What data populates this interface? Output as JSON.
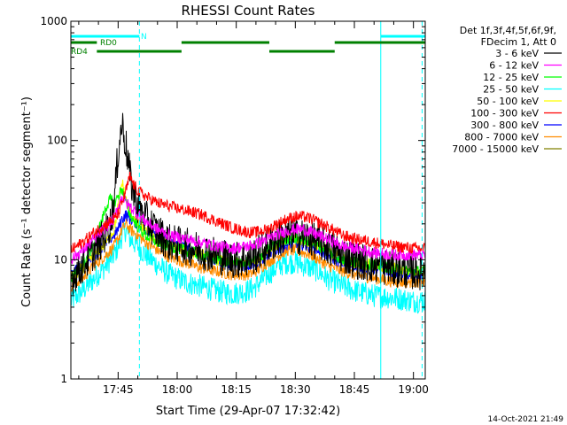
{
  "chart_data": {
    "type": "line",
    "title": "RHESSI Count Rates",
    "xlabel": "Start Time (29-Apr-07 17:32:42)",
    "ylabel": "Count Rate (s⁻¹ detector segment⁻¹)",
    "y_scale": "log",
    "ylim": [
      1,
      1000
    ],
    "xlim_minutes_after_1730": [
      3,
      93
    ],
    "x_ticks": [
      {
        "minute": 15,
        "label": "17:45"
      },
      {
        "minute": 30,
        "label": "18:00"
      },
      {
        "minute": 45,
        "label": "18:15"
      },
      {
        "minute": 60,
        "label": "18:30"
      },
      {
        "minute": 75,
        "label": "18:45"
      },
      {
        "minute": 90,
        "label": "19:00"
      }
    ],
    "y_ticks": [
      {
        "value": 1,
        "label": "1"
      },
      {
        "value": 10,
        "label": "10"
      },
      {
        "value": 100,
        "label": "100"
      },
      {
        "value": 1000,
        "label": "1000"
      }
    ],
    "legend_header": [
      "Det 1f,3f,4f,5f,6f,9f,",
      "FDecim 1, Att 0"
    ],
    "legend_position": "right",
    "series": [
      {
        "name": "3 - 6 keV",
        "color": "#000000"
      },
      {
        "name": "6 - 12 keV",
        "color": "#ff00ff"
      },
      {
        "name": "12 - 25 keV",
        "color": "#00ff00"
      },
      {
        "name": "25 - 50 keV",
        "color": "#00ffff"
      },
      {
        "name": "50 - 100 keV",
        "color": "#ffff00"
      },
      {
        "name": "100 - 300 keV",
        "color": "#ff0000"
      },
      {
        "name": "300 - 800 keV",
        "color": "#0000ff"
      },
      {
        "name": "800 - 7000 keV",
        "color": "#ff8c00"
      },
      {
        "name": "7000 - 15000 keV",
        "color": "#808000"
      }
    ],
    "plotted_profiles": [
      {
        "series": "100 - 300 keV",
        "color": "#ff0000",
        "points": [
          [
            3,
            12
          ],
          [
            6,
            14
          ],
          [
            9,
            17
          ],
          [
            12,
            20
          ],
          [
            14,
            22
          ],
          [
            15,
            24
          ],
          [
            16,
            30
          ],
          [
            17,
            38
          ],
          [
            18,
            50
          ],
          [
            19,
            42
          ],
          [
            20,
            38
          ],
          [
            22,
            34
          ],
          [
            25,
            30
          ],
          [
            28,
            28
          ],
          [
            32,
            26
          ],
          [
            36,
            24
          ],
          [
            40,
            21
          ],
          [
            44,
            18.5
          ],
          [
            48,
            17
          ],
          [
            50,
            17
          ],
          [
            53,
            18
          ],
          [
            56,
            20.5
          ],
          [
            58,
            22
          ],
          [
            60,
            23
          ],
          [
            62,
            23
          ],
          [
            64,
            22
          ],
          [
            66,
            20.5
          ],
          [
            68,
            19
          ],
          [
            70,
            17.5
          ],
          [
            72,
            16
          ],
          [
            75,
            15
          ],
          [
            80,
            14
          ],
          [
            85,
            13
          ],
          [
            90,
            12.5
          ],
          [
            93,
            12.5
          ]
        ]
      },
      {
        "series": "6 - 12 keV",
        "color": "#ff00ff",
        "points": [
          [
            3,
            10
          ],
          [
            6,
            12
          ],
          [
            9,
            15
          ],
          [
            12,
            19
          ],
          [
            14,
            22
          ],
          [
            15,
            28
          ],
          [
            16,
            34
          ],
          [
            17,
            30
          ],
          [
            18,
            28
          ],
          [
            20,
            24
          ],
          [
            22,
            21
          ],
          [
            25,
            18
          ],
          [
            28,
            16
          ],
          [
            32,
            15
          ],
          [
            36,
            14
          ],
          [
            40,
            13
          ],
          [
            44,
            12.5
          ],
          [
            48,
            13
          ],
          [
            50,
            13.5
          ],
          [
            53,
            15
          ],
          [
            56,
            16.5
          ],
          [
            58,
            17.5
          ],
          [
            60,
            18
          ],
          [
            62,
            18
          ],
          [
            64,
            17
          ],
          [
            66,
            16
          ],
          [
            68,
            15
          ],
          [
            70,
            14
          ],
          [
            72,
            13
          ],
          [
            75,
            12.5
          ],
          [
            80,
            11.5
          ],
          [
            85,
            11
          ],
          [
            90,
            11
          ],
          [
            93,
            11
          ]
        ]
      },
      {
        "series": "3 - 6 keV",
        "color": "#000000",
        "points": [
          [
            3,
            7
          ],
          [
            6,
            9
          ],
          [
            9,
            12
          ],
          [
            11,
            15
          ],
          [
            13,
            20
          ],
          [
            14,
            30
          ],
          [
            15,
            80
          ],
          [
            16,
            140
          ],
          [
            17,
            90
          ],
          [
            18,
            50
          ],
          [
            19,
            35
          ],
          [
            20,
            28
          ],
          [
            22,
            22
          ],
          [
            25,
            17
          ],
          [
            28,
            14
          ],
          [
            32,
            13
          ],
          [
            36,
            12
          ],
          [
            40,
            11
          ],
          [
            44,
            10
          ],
          [
            48,
            10
          ],
          [
            50,
            11
          ],
          [
            53,
            13
          ],
          [
            56,
            15
          ],
          [
            58,
            16
          ],
          [
            60,
            16
          ],
          [
            62,
            15.5
          ],
          [
            64,
            15
          ],
          [
            66,
            14
          ],
          [
            68,
            13
          ],
          [
            70,
            12
          ],
          [
            72,
            11
          ],
          [
            75,
            10
          ],
          [
            80,
            9
          ],
          [
            85,
            8.5
          ],
          [
            90,
            8
          ],
          [
            93,
            8
          ]
        ]
      },
      {
        "series": "12 - 25 keV",
        "color": "#00ff00",
        "points": [
          [
            3,
            7
          ],
          [
            6,
            9
          ],
          [
            9,
            14
          ],
          [
            11,
            22
          ],
          [
            12,
            28
          ],
          [
            13,
            32
          ],
          [
            14,
            30
          ],
          [
            15,
            34
          ],
          [
            16,
            40
          ],
          [
            17,
            30
          ],
          [
            18,
            24
          ],
          [
            20,
            19
          ],
          [
            22,
            16
          ],
          [
            25,
            14
          ],
          [
            28,
            13
          ],
          [
            32,
            12
          ],
          [
            36,
            11
          ],
          [
            40,
            10
          ],
          [
            44,
            9.5
          ],
          [
            48,
            9.5
          ],
          [
            50,
            10
          ],
          [
            53,
            12
          ],
          [
            56,
            14
          ],
          [
            58,
            15
          ],
          [
            60,
            15
          ],
          [
            62,
            14.5
          ],
          [
            64,
            14
          ],
          [
            66,
            13
          ],
          [
            68,
            12
          ],
          [
            70,
            11
          ],
          [
            72,
            10
          ],
          [
            75,
            9.5
          ],
          [
            80,
            9
          ],
          [
            85,
            8.5
          ],
          [
            90,
            8
          ],
          [
            93,
            8
          ]
        ]
      },
      {
        "series": "50 - 100 keV",
        "color": "#ffff00",
        "points": [
          [
            3,
            7
          ],
          [
            6,
            8.5
          ],
          [
            9,
            11
          ],
          [
            12,
            14
          ],
          [
            14,
            18
          ],
          [
            15,
            28
          ],
          [
            16,
            45
          ],
          [
            17,
            32
          ],
          [
            18,
            25
          ],
          [
            20,
            20
          ],
          [
            22,
            17
          ],
          [
            25,
            14
          ],
          [
            28,
            13
          ],
          [
            32,
            12
          ],
          [
            36,
            11
          ],
          [
            40,
            10
          ],
          [
            44,
            9.5
          ],
          [
            48,
            9.5
          ],
          [
            50,
            10
          ],
          [
            53,
            12
          ],
          [
            56,
            14
          ],
          [
            58,
            15
          ],
          [
            60,
            15
          ],
          [
            62,
            14.5
          ],
          [
            64,
            14
          ],
          [
            66,
            13
          ],
          [
            68,
            12
          ],
          [
            70,
            11
          ],
          [
            72,
            10
          ],
          [
            75,
            9.5
          ],
          [
            80,
            9
          ],
          [
            85,
            8.5
          ],
          [
            90,
            8
          ],
          [
            93,
            8
          ]
        ]
      },
      {
        "series": "300 - 800 keV",
        "color": "#0000ff",
        "points": [
          [
            3,
            7.5
          ],
          [
            6,
            9
          ],
          [
            9,
            11
          ],
          [
            12,
            14
          ],
          [
            14,
            16
          ],
          [
            15,
            18
          ],
          [
            16,
            22
          ],
          [
            17,
            24
          ],
          [
            18,
            22
          ],
          [
            20,
            20
          ],
          [
            22,
            18
          ],
          [
            25,
            16
          ],
          [
            28,
            14
          ],
          [
            32,
            12.5
          ],
          [
            36,
            11
          ],
          [
            40,
            10
          ],
          [
            44,
            9
          ],
          [
            48,
            9
          ],
          [
            50,
            9.5
          ],
          [
            53,
            11
          ],
          [
            56,
            12.5
          ],
          [
            58,
            13.5
          ],
          [
            60,
            14
          ],
          [
            62,
            13.5
          ],
          [
            64,
            13
          ],
          [
            66,
            12
          ],
          [
            68,
            11
          ],
          [
            70,
            10
          ],
          [
            72,
            9.5
          ],
          [
            75,
            9
          ],
          [
            80,
            8.5
          ],
          [
            85,
            8
          ],
          [
            90,
            7.5
          ],
          [
            93,
            7.5
          ]
        ]
      },
      {
        "series": "800 - 7000 keV",
        "color": "#ff8c00",
        "points": [
          [
            3,
            6
          ],
          [
            6,
            7
          ],
          [
            9,
            9
          ],
          [
            12,
            11
          ],
          [
            14,
            13
          ],
          [
            15,
            15
          ],
          [
            16,
            18
          ],
          [
            17,
            20
          ],
          [
            18,
            18
          ],
          [
            20,
            16
          ],
          [
            22,
            14
          ],
          [
            25,
            12
          ],
          [
            28,
            10.5
          ],
          [
            32,
            9.5
          ],
          [
            36,
            8.5
          ],
          [
            40,
            8
          ],
          [
            44,
            7.5
          ],
          [
            48,
            7.5
          ],
          [
            50,
            8
          ],
          [
            53,
            9.5
          ],
          [
            56,
            11
          ],
          [
            58,
            12
          ],
          [
            60,
            12
          ],
          [
            62,
            11.5
          ],
          [
            64,
            11
          ],
          [
            66,
            10
          ],
          [
            68,
            9
          ],
          [
            70,
            8.5
          ],
          [
            72,
            8
          ],
          [
            75,
            7.5
          ],
          [
            80,
            7
          ],
          [
            85,
            6.5
          ],
          [
            90,
            6.5
          ],
          [
            93,
            6.5
          ]
        ]
      },
      {
        "series": "25 - 50 keV",
        "color": "#00ffff",
        "points": [
          [
            3,
            4.5
          ],
          [
            6,
            5.5
          ],
          [
            9,
            7
          ],
          [
            12,
            9
          ],
          [
            14,
            11
          ],
          [
            15,
            13
          ],
          [
            16,
            16
          ],
          [
            17,
            18
          ],
          [
            18,
            15
          ],
          [
            20,
            13
          ],
          [
            22,
            11
          ],
          [
            25,
            9
          ],
          [
            28,
            7.5
          ],
          [
            32,
            6.5
          ],
          [
            36,
            6
          ],
          [
            40,
            5.5
          ],
          [
            44,
            5.2
          ],
          [
            48,
            5.5
          ],
          [
            50,
            6
          ],
          [
            53,
            7.5
          ],
          [
            56,
            9
          ],
          [
            58,
            9.5
          ],
          [
            60,
            9.5
          ],
          [
            62,
            9
          ],
          [
            64,
            8.5
          ],
          [
            66,
            8
          ],
          [
            68,
            7
          ],
          [
            70,
            6.5
          ],
          [
            72,
            6
          ],
          [
            75,
            5.5
          ],
          [
            80,
            5
          ],
          [
            85,
            4.8
          ],
          [
            90,
            4.5
          ],
          [
            93,
            4.5
          ]
        ]
      }
    ],
    "state_bars": [
      {
        "label": "N",
        "color": "#00ffff",
        "segments": [
          [
            3,
            20.4
          ],
          [
            81.7,
            93
          ]
        ]
      },
      {
        "label": "RD0",
        "color": "#008000",
        "segments": [
          [
            3,
            9.6
          ],
          [
            31.1,
            53.4
          ],
          [
            70,
            93
          ]
        ]
      },
      {
        "label": "RD4",
        "color": "#008000",
        "segments": [
          [
            9.6,
            31.1
          ],
          [
            53.4,
            70
          ]
        ]
      }
    ],
    "vertical_markers": [
      {
        "minute": 3,
        "style": "solid",
        "color": "#00ffff"
      },
      {
        "minute": 20.4,
        "style": "dashed",
        "color": "#00ffff"
      },
      {
        "minute": 81.7,
        "style": "solid",
        "color": "#00ffff"
      },
      {
        "minute": 92.2,
        "style": "dashed",
        "color": "#00ffff"
      }
    ],
    "timestamp": "14-Oct-2021 21:49"
  }
}
